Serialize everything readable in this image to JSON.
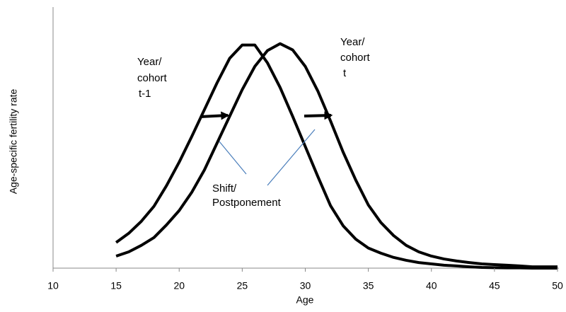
{
  "chart_data": {
    "type": "line",
    "x_label": "Age",
    "y_label": "Age-specific fertility rate",
    "x": [
      15,
      16,
      17,
      18,
      19,
      20,
      21,
      22,
      23,
      24,
      25,
      26,
      27,
      28,
      29,
      30,
      31,
      32,
      33,
      34,
      35,
      36,
      37,
      38,
      39,
      40,
      41,
      42,
      43,
      44,
      45,
      46,
      47,
      48,
      49,
      50
    ],
    "series": [
      {
        "name": "Year/cohort t-1",
        "color": "#000000",
        "values": [
          11.5,
          15.6,
          21,
          27.7,
          37,
          47.5,
          59,
          71,
          83,
          94,
          100,
          100,
          92,
          81,
          68,
          54.5,
          41,
          28,
          19,
          13,
          9,
          6.7,
          4.8,
          3.5,
          2.5,
          1.9,
          1.3,
          1,
          0.6,
          0.3,
          0.2,
          0.1,
          0.1,
          0,
          0,
          0
        ]
      },
      {
        "name": "Year/cohort t",
        "color": "#000000",
        "values": [
          5.4,
          7.3,
          10.2,
          13.7,
          19.4,
          25.8,
          34,
          44,
          56,
          68,
          80,
          90.4,
          97.5,
          100.6,
          97.8,
          90.4,
          79.3,
          66,
          52,
          39.5,
          28.3,
          20.4,
          14.6,
          10.2,
          7.3,
          5.4,
          4.1,
          3.2,
          2.5,
          1.9,
          1.6,
          1.3,
          1,
          0.6,
          0.6,
          0.6
        ]
      }
    ],
    "xlim": [
      10,
      50
    ],
    "xticks": [
      10,
      15,
      20,
      25,
      30,
      35,
      40,
      45,
      50
    ],
    "ylim": [
      0,
      117
    ],
    "grid": false,
    "annotations": [
      {
        "lines": [
          "Year/",
          "cohort",
          "t-1"
        ]
      },
      {
        "lines": [
          "Year/",
          "cohort",
          "t"
        ]
      },
      {
        "lines": [
          "Shift/",
          "Postponement"
        ]
      }
    ]
  }
}
